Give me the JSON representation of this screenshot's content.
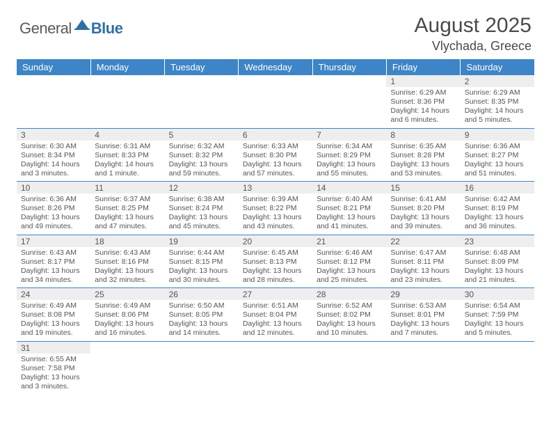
{
  "logo": {
    "general": "General",
    "blue": "Blue"
  },
  "title": "August 2025",
  "location": "Vlychada, Greece",
  "colors": {
    "header_bg": "#3d85c6",
    "header_text": "#ffffff",
    "daynum_bg": "#eeeeee",
    "text": "#555555",
    "border": "#3d85c6",
    "logo_blue": "#2f6fa7"
  },
  "weekdays": [
    "Sunday",
    "Monday",
    "Tuesday",
    "Wednesday",
    "Thursday",
    "Friday",
    "Saturday"
  ],
  "weeks": [
    [
      null,
      null,
      null,
      null,
      null,
      {
        "n": "1",
        "sunrise": "6:29 AM",
        "sunset": "8:36 PM",
        "daylight": "14 hours and 6 minutes."
      },
      {
        "n": "2",
        "sunrise": "6:29 AM",
        "sunset": "8:35 PM",
        "daylight": "14 hours and 5 minutes."
      }
    ],
    [
      {
        "n": "3",
        "sunrise": "6:30 AM",
        "sunset": "8:34 PM",
        "daylight": "14 hours and 3 minutes."
      },
      {
        "n": "4",
        "sunrise": "6:31 AM",
        "sunset": "8:33 PM",
        "daylight": "14 hours and 1 minute."
      },
      {
        "n": "5",
        "sunrise": "6:32 AM",
        "sunset": "8:32 PM",
        "daylight": "13 hours and 59 minutes."
      },
      {
        "n": "6",
        "sunrise": "6:33 AM",
        "sunset": "8:30 PM",
        "daylight": "13 hours and 57 minutes."
      },
      {
        "n": "7",
        "sunrise": "6:34 AM",
        "sunset": "8:29 PM",
        "daylight": "13 hours and 55 minutes."
      },
      {
        "n": "8",
        "sunrise": "6:35 AM",
        "sunset": "8:28 PM",
        "daylight": "13 hours and 53 minutes."
      },
      {
        "n": "9",
        "sunrise": "6:36 AM",
        "sunset": "8:27 PM",
        "daylight": "13 hours and 51 minutes."
      }
    ],
    [
      {
        "n": "10",
        "sunrise": "6:36 AM",
        "sunset": "8:26 PM",
        "daylight": "13 hours and 49 minutes."
      },
      {
        "n": "11",
        "sunrise": "6:37 AM",
        "sunset": "8:25 PM",
        "daylight": "13 hours and 47 minutes."
      },
      {
        "n": "12",
        "sunrise": "6:38 AM",
        "sunset": "8:24 PM",
        "daylight": "13 hours and 45 minutes."
      },
      {
        "n": "13",
        "sunrise": "6:39 AM",
        "sunset": "8:22 PM",
        "daylight": "13 hours and 43 minutes."
      },
      {
        "n": "14",
        "sunrise": "6:40 AM",
        "sunset": "8:21 PM",
        "daylight": "13 hours and 41 minutes."
      },
      {
        "n": "15",
        "sunrise": "6:41 AM",
        "sunset": "8:20 PM",
        "daylight": "13 hours and 39 minutes."
      },
      {
        "n": "16",
        "sunrise": "6:42 AM",
        "sunset": "8:19 PM",
        "daylight": "13 hours and 36 minutes."
      }
    ],
    [
      {
        "n": "17",
        "sunrise": "6:43 AM",
        "sunset": "8:17 PM",
        "daylight": "13 hours and 34 minutes."
      },
      {
        "n": "18",
        "sunrise": "6:43 AM",
        "sunset": "8:16 PM",
        "daylight": "13 hours and 32 minutes."
      },
      {
        "n": "19",
        "sunrise": "6:44 AM",
        "sunset": "8:15 PM",
        "daylight": "13 hours and 30 minutes."
      },
      {
        "n": "20",
        "sunrise": "6:45 AM",
        "sunset": "8:13 PM",
        "daylight": "13 hours and 28 minutes."
      },
      {
        "n": "21",
        "sunrise": "6:46 AM",
        "sunset": "8:12 PM",
        "daylight": "13 hours and 25 minutes."
      },
      {
        "n": "22",
        "sunrise": "6:47 AM",
        "sunset": "8:11 PM",
        "daylight": "13 hours and 23 minutes."
      },
      {
        "n": "23",
        "sunrise": "6:48 AM",
        "sunset": "8:09 PM",
        "daylight": "13 hours and 21 minutes."
      }
    ],
    [
      {
        "n": "24",
        "sunrise": "6:49 AM",
        "sunset": "8:08 PM",
        "daylight": "13 hours and 19 minutes."
      },
      {
        "n": "25",
        "sunrise": "6:49 AM",
        "sunset": "8:06 PM",
        "daylight": "13 hours and 16 minutes."
      },
      {
        "n": "26",
        "sunrise": "6:50 AM",
        "sunset": "8:05 PM",
        "daylight": "13 hours and 14 minutes."
      },
      {
        "n": "27",
        "sunrise": "6:51 AM",
        "sunset": "8:04 PM",
        "daylight": "13 hours and 12 minutes."
      },
      {
        "n": "28",
        "sunrise": "6:52 AM",
        "sunset": "8:02 PM",
        "daylight": "13 hours and 10 minutes."
      },
      {
        "n": "29",
        "sunrise": "6:53 AM",
        "sunset": "8:01 PM",
        "daylight": "13 hours and 7 minutes."
      },
      {
        "n": "30",
        "sunrise": "6:54 AM",
        "sunset": "7:59 PM",
        "daylight": "13 hours and 5 minutes."
      }
    ],
    [
      {
        "n": "31",
        "sunrise": "6:55 AM",
        "sunset": "7:58 PM",
        "daylight": "13 hours and 3 minutes."
      },
      null,
      null,
      null,
      null,
      null,
      null
    ]
  ],
  "labels": {
    "sunrise": "Sunrise:",
    "sunset": "Sunset:",
    "daylight": "Daylight:"
  }
}
